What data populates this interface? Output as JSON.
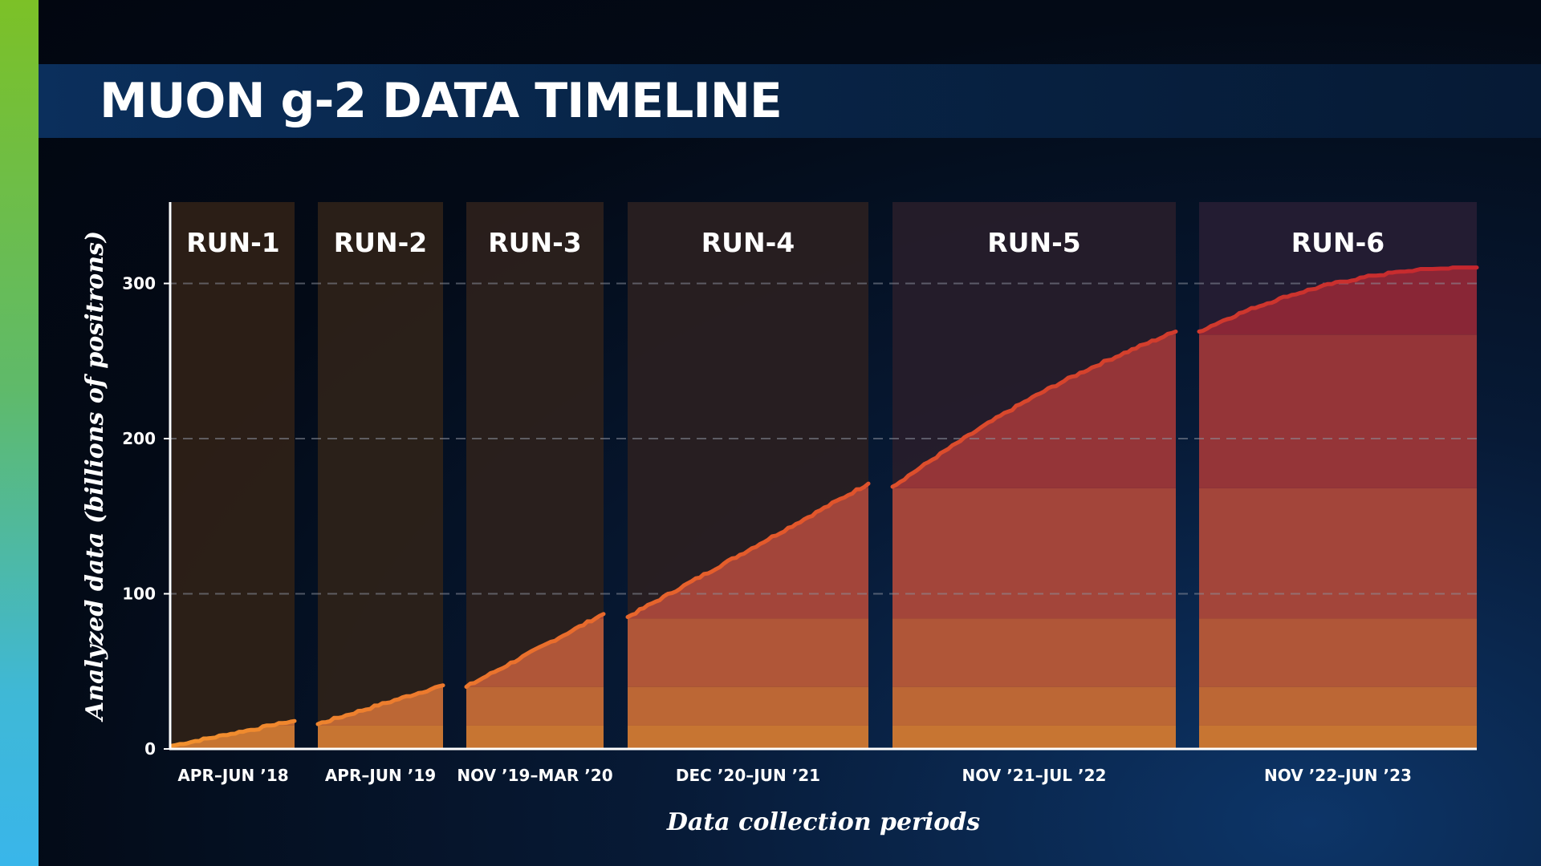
{
  "title": "MUON g-2 DATA TIMELINE",
  "chart_data": {
    "type": "area",
    "title": "MUON g-2 DATA TIMELINE",
    "xlabel": "Data collection periods",
    "ylabel": "Analyzed data (billions of positrons)",
    "ylim": [
      0,
      350
    ],
    "yticks": [
      0,
      100,
      200,
      300
    ],
    "grid": "horizontal dashed",
    "series": [
      {
        "run": "RUN-1",
        "period": "APR–JUN ’18",
        "start_value": 2,
        "end_value": 18
      },
      {
        "run": "RUN-2",
        "period": "APR–JUN ’19",
        "start_value": 16,
        "end_value": 41
      },
      {
        "run": "RUN-3",
        "period": "NOV ’19–MAR ’20",
        "start_value": 40,
        "end_value": 87
      },
      {
        "run": "RUN-4",
        "period": "DEC ’20–JUN ’21",
        "start_value": 85,
        "end_value": 171
      },
      {
        "run": "RUN-5",
        "period": "NOV ’21–JUL ’22",
        "start_value": 169,
        "end_value": 269
      },
      {
        "run": "RUN-6",
        "period": "NOV ’22–JUN ’23",
        "start_value": 269,
        "end_value": 310
      }
    ],
    "colors": {
      "run_bands": [
        "#2f2117",
        "#2e2219",
        "#2c211c",
        "#2a1f21",
        "#271d2a",
        "#261d33"
      ],
      "fill_levels": [
        "#c77532",
        "#bc6735",
        "#b05638",
        "#a3453a",
        "#953538",
        "#892636"
      ],
      "curve": [
        "#f08a2e",
        "#e85a2b",
        "#c52a2e"
      ]
    }
  }
}
